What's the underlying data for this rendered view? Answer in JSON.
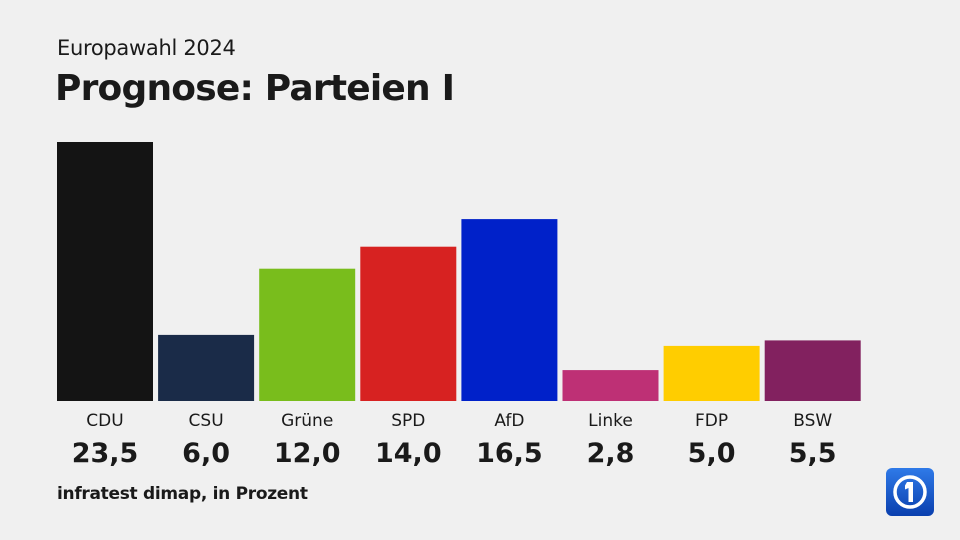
{
  "header": {
    "kicker": "Europawahl 2024",
    "title": "Prognose: Parteien I"
  },
  "chart_data": {
    "type": "bar",
    "categories": [
      "CDU",
      "CSU",
      "Grüne",
      "SPD",
      "AfD",
      "Linke",
      "FDP",
      "BSW"
    ],
    "values": [
      23.5,
      6.0,
      12.0,
      14.0,
      16.5,
      2.8,
      5.0,
      5.5
    ],
    "value_labels": [
      "23,5",
      "6,0",
      "12,0",
      "14,0",
      "16,5",
      "2,8",
      "5,0",
      "5,5"
    ],
    "colors": [
      "#141414",
      "#1a2b48",
      "#79bd1c",
      "#d72221",
      "#0021c9",
      "#be3075",
      "#ffcd00",
      "#82215f"
    ],
    "title": "Prognose: Parteien I",
    "xlabel": "",
    "ylabel": "",
    "unit": "Prozent",
    "ylim": [
      0,
      23.5
    ],
    "grid": false,
    "legend": "none"
  },
  "footer": {
    "source": "infratest dimap, in Prozent"
  },
  "logo": {
    "icon": "ard-tagesschau-logo",
    "accent": "#1f64d6"
  }
}
